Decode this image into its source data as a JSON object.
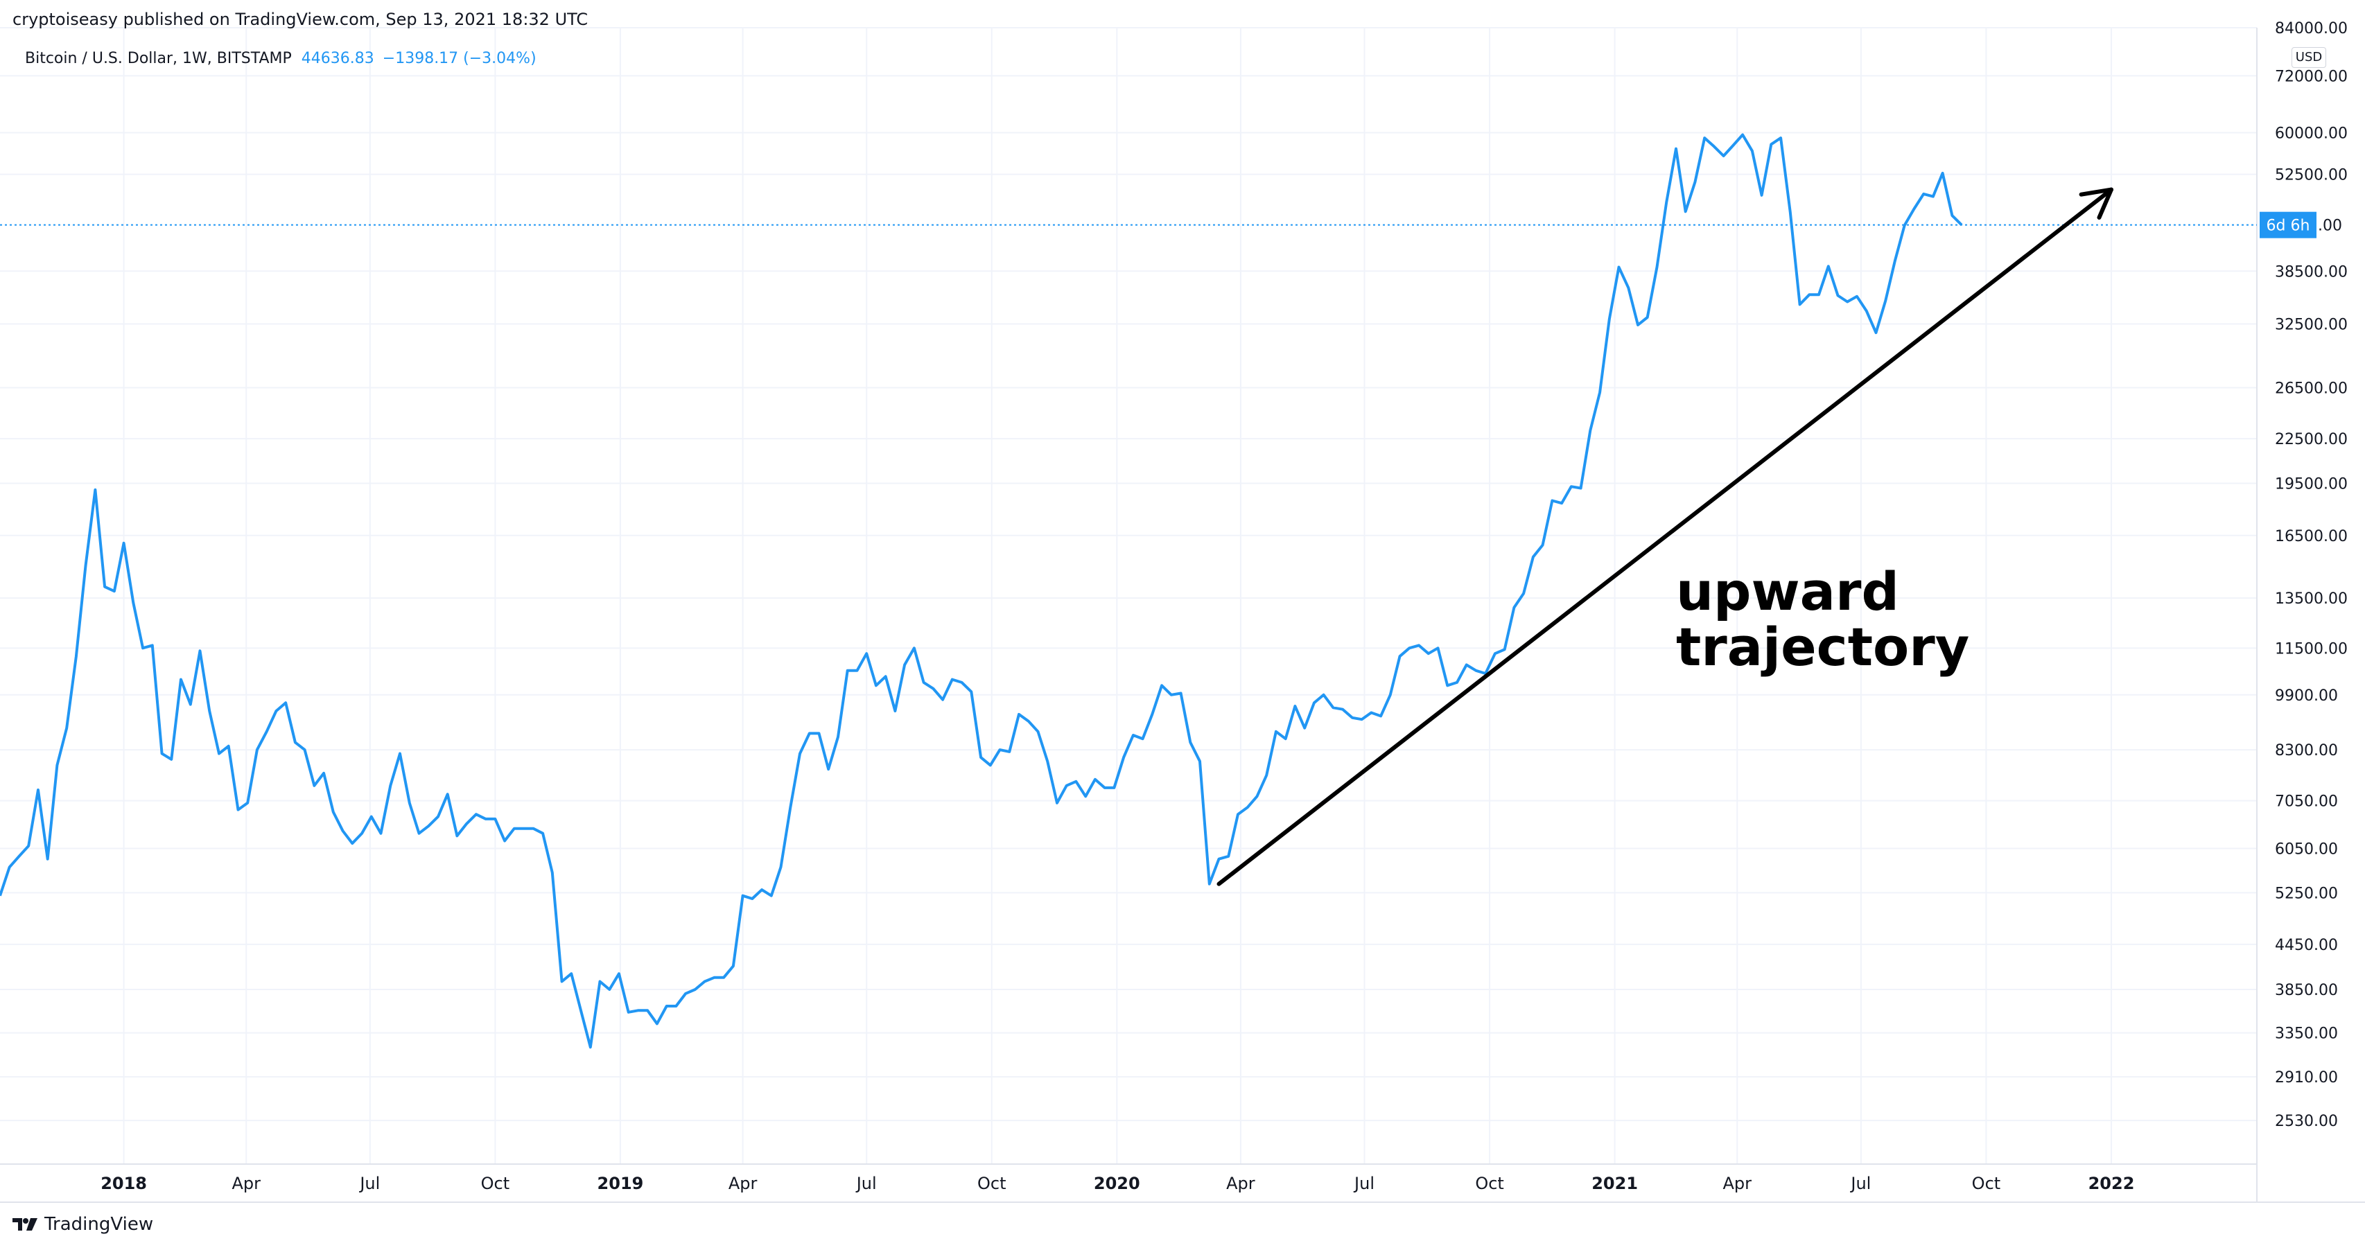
{
  "header": {
    "published_line": "cryptoiseasy published on TradingView.com, Sep 13, 2021 18:32 UTC",
    "symbol_line": "Bitcoin / U.S. Dollar, 1W, BITSTAMP",
    "price": "44636.83",
    "change": "−1398.17 (−3.04%)",
    "currency": "USD"
  },
  "footer": {
    "brand": "TradingView"
  },
  "colors": {
    "line": "#2196f3",
    "grid": "#f0f3fa",
    "text": "#131722",
    "annotation": "#000000",
    "badge_bg": "#2196f3"
  },
  "chart_data": {
    "type": "line",
    "title": "Bitcoin / U.S. Dollar, 1W, BITSTAMP",
    "log_scale": true,
    "ylim": [
      2200,
      84000
    ],
    "xlim": [
      "2017-10-02",
      "2022-04-18"
    ],
    "grid": true,
    "y_ticks": [
      "2530.00",
      "2910.00",
      "3350.00",
      "3850.00",
      "4450.00",
      "5250.00",
      "6050.00",
      "7050.00",
      "8300.00",
      "9900.00",
      "11500.00",
      "13500.00",
      "16500.00",
      "19500.00",
      "22500.00",
      "26500.00",
      "32500.00",
      "38500.00",
      "52500.00",
      "60000.00",
      "72000.00",
      "84000.00"
    ],
    "x_ticks": [
      {
        "date": "2018-01-01",
        "label": "2018",
        "bold": true
      },
      {
        "date": "2018-04-01",
        "label": "Apr",
        "bold": false
      },
      {
        "date": "2018-07-01",
        "label": "Jul",
        "bold": false
      },
      {
        "date": "2018-10-01",
        "label": "Oct",
        "bold": false
      },
      {
        "date": "2019-01-01",
        "label": "2019",
        "bold": true
      },
      {
        "date": "2019-04-01",
        "label": "Apr",
        "bold": false
      },
      {
        "date": "2019-07-01",
        "label": "Jul",
        "bold": false
      },
      {
        "date": "2019-10-01",
        "label": "Oct",
        "bold": false
      },
      {
        "date": "2020-01-01",
        "label": "2020",
        "bold": true
      },
      {
        "date": "2020-04-01",
        "label": "Apr",
        "bold": false
      },
      {
        "date": "2020-07-01",
        "label": "Jul",
        "bold": false
      },
      {
        "date": "2020-10-01",
        "label": "Oct",
        "bold": false
      },
      {
        "date": "2021-01-01",
        "label": "2021",
        "bold": true
      },
      {
        "date": "2021-04-01",
        "label": "Apr",
        "bold": false
      },
      {
        "date": "2021-07-01",
        "label": "Jul",
        "bold": false
      },
      {
        "date": "2021-10-01",
        "label": "Oct",
        "bold": false
      },
      {
        "date": "2022-01-01",
        "label": "2022",
        "bold": true
      }
    ],
    "last_price": 44636.83,
    "last_price_badge": "6d 6h",
    "series": [
      {
        "x": [
          "2017-10-02",
          "2017-10-09",
          "2017-10-16",
          "2017-10-23",
          "2017-10-30",
          "2017-11-06",
          "2017-11-13",
          "2017-11-20",
          "2017-11-27",
          "2017-12-04",
          "2017-12-11",
          "2017-12-18",
          "2017-12-25",
          "2018-01-01",
          "2018-01-08",
          "2018-01-15",
          "2018-01-22",
          "2018-01-29",
          "2018-02-05",
          "2018-02-12",
          "2018-02-19",
          "2018-02-26",
          "2018-03-05",
          "2018-03-12",
          "2018-03-19",
          "2018-03-26",
          "2018-04-02",
          "2018-04-09",
          "2018-04-16",
          "2018-04-23",
          "2018-04-30",
          "2018-05-07",
          "2018-05-14",
          "2018-05-21",
          "2018-05-28",
          "2018-06-04",
          "2018-06-11",
          "2018-06-18",
          "2018-06-25",
          "2018-07-02",
          "2018-07-09",
          "2018-07-16",
          "2018-07-23",
          "2018-07-30",
          "2018-08-06",
          "2018-08-13",
          "2018-08-20",
          "2018-08-27",
          "2018-09-03",
          "2018-09-10",
          "2018-09-17",
          "2018-09-24",
          "2018-10-01",
          "2018-10-08",
          "2018-10-15",
          "2018-10-22",
          "2018-10-29",
          "2018-11-05",
          "2018-11-12",
          "2018-11-19",
          "2018-11-26",
          "2018-12-03",
          "2018-12-10",
          "2018-12-17",
          "2018-12-24",
          "2018-12-31",
          "2019-01-07",
          "2019-01-14",
          "2019-01-21",
          "2019-01-28",
          "2019-02-04",
          "2019-02-11",
          "2019-02-18",
          "2019-02-25",
          "2019-03-04",
          "2019-03-11",
          "2019-03-18",
          "2019-03-25",
          "2019-04-01",
          "2019-04-08",
          "2019-04-15",
          "2019-04-22",
          "2019-04-29",
          "2019-05-06",
          "2019-05-13",
          "2019-05-20",
          "2019-05-27",
          "2019-06-03",
          "2019-06-10",
          "2019-06-17",
          "2019-06-24",
          "2019-07-01",
          "2019-07-08",
          "2019-07-15",
          "2019-07-22",
          "2019-07-29",
          "2019-08-05",
          "2019-08-12",
          "2019-08-19",
          "2019-08-26",
          "2019-09-02",
          "2019-09-09",
          "2019-09-16",
          "2019-09-23",
          "2019-09-30",
          "2019-10-07",
          "2019-10-14",
          "2019-10-21",
          "2019-10-28",
          "2019-11-04",
          "2019-11-11",
          "2019-11-18",
          "2019-11-25",
          "2019-12-02",
          "2019-12-09",
          "2019-12-16",
          "2019-12-23",
          "2019-12-30",
          "2020-01-06",
          "2020-01-13",
          "2020-01-20",
          "2020-01-27",
          "2020-02-03",
          "2020-02-10",
          "2020-02-17",
          "2020-02-24",
          "2020-03-02",
          "2020-03-09",
          "2020-03-16",
          "2020-03-23",
          "2020-03-30",
          "2020-04-06",
          "2020-04-13",
          "2020-04-20",
          "2020-04-27",
          "2020-05-04",
          "2020-05-11",
          "2020-05-18",
          "2020-05-25",
          "2020-06-01",
          "2020-06-08",
          "2020-06-15",
          "2020-06-22",
          "2020-06-29",
          "2020-07-06",
          "2020-07-13",
          "2020-07-20",
          "2020-07-27",
          "2020-08-03",
          "2020-08-10",
          "2020-08-17",
          "2020-08-24",
          "2020-08-31",
          "2020-09-07",
          "2020-09-14",
          "2020-09-21",
          "2020-09-28",
          "2020-10-05",
          "2020-10-12",
          "2020-10-19",
          "2020-10-26",
          "2020-11-02",
          "2020-11-09",
          "2020-11-16",
          "2020-11-23",
          "2020-11-30",
          "2020-12-07",
          "2020-12-14",
          "2020-12-21",
          "2020-12-28",
          "2021-01-04",
          "2021-01-11",
          "2021-01-18",
          "2021-01-25",
          "2021-02-01",
          "2021-02-08",
          "2021-02-15",
          "2021-02-22",
          "2021-03-01",
          "2021-03-08",
          "2021-03-15",
          "2021-03-22",
          "2021-03-29",
          "2021-04-05",
          "2021-04-12",
          "2021-04-19",
          "2021-04-26",
          "2021-05-03",
          "2021-05-10",
          "2021-05-17",
          "2021-05-24",
          "2021-05-31",
          "2021-06-07",
          "2021-06-14",
          "2021-06-21",
          "2021-06-28",
          "2021-07-05",
          "2021-07-12",
          "2021-07-19",
          "2021-07-26",
          "2021-08-02",
          "2021-08-09",
          "2021-08-16",
          "2021-08-23",
          "2021-08-30",
          "2021-09-06",
          "2021-09-13"
        ],
        "values": [
          5200,
          5700,
          5900,
          6100,
          7300,
          5850,
          7900,
          8900,
          11200,
          15000,
          19100,
          14000,
          13800,
          16100,
          13300,
          11500,
          11600,
          8200,
          8050,
          10400,
          9600,
          11400,
          9400,
          8200,
          8400,
          6850,
          7000,
          8300,
          8800,
          9400,
          9650,
          8500,
          8300,
          7400,
          7700,
          6800,
          6400,
          6150,
          6350,
          6700,
          6350,
          7400,
          8200,
          7000,
          6350,
          6500,
          6700,
          7200,
          6300,
          6550,
          6750,
          6650,
          6650,
          6200,
          6450,
          6450,
          6450,
          6350,
          5600,
          3950,
          4050,
          3600,
          3200,
          3950,
          3850,
          4050,
          3580,
          3600,
          3600,
          3450,
          3650,
          3650,
          3800,
          3850,
          3950,
          4000,
          4000,
          4150,
          5200,
          5150,
          5300,
          5200,
          5700,
          6900,
          8200,
          8750,
          8750,
          7800,
          8650,
          10700,
          10700,
          11300,
          10200,
          10500,
          9400,
          10900,
          11500,
          10300,
          10100,
          9750,
          10400,
          10300,
          10000,
          8100,
          7900,
          8300,
          8250,
          9300,
          9100,
          8800,
          8000,
          7000,
          7400,
          7500,
          7150,
          7550,
          7350,
          7350,
          8100,
          8700,
          8600,
          9300,
          10200,
          9900,
          9950,
          8500,
          8000,
          5400,
          5850,
          5900,
          6750,
          6900,
          7150,
          7650,
          8800,
          8600,
          9550,
          8900,
          9650,
          9900,
          9500,
          9450,
          9200,
          9150,
          9350,
          9250,
          9900,
          11200,
          11500,
          11600,
          11300,
          11500,
          10200,
          10300,
          10900,
          10700,
          10600,
          11300,
          11450,
          13100,
          13700,
          15400,
          16000,
          18450,
          18300,
          19300,
          19200,
          23100,
          26100,
          33000,
          39000,
          36500,
          32400,
          33200,
          39000,
          48000,
          57000,
          46600,
          51200,
          59000,
          57400,
          55700,
          57600,
          59600,
          56600,
          49100,
          57800,
          59000,
          46500,
          34600,
          35700,
          35700,
          39100,
          35600,
          34900,
          35500,
          33900,
          31600,
          35000,
          39800,
          44600,
          47000,
          49300,
          48900,
          52700,
          46000,
          44636.83
        ]
      }
    ],
    "annotations": [
      {
        "type": "arrow",
        "from": [
          "2020-03-16",
          5400
        ],
        "to": [
          "2022-01-01",
          50000
        ]
      },
      {
        "type": "text",
        "lines": [
          "upward",
          "trajectory"
        ],
        "at": [
          "2021-02-15",
          13000
        ]
      }
    ]
  }
}
